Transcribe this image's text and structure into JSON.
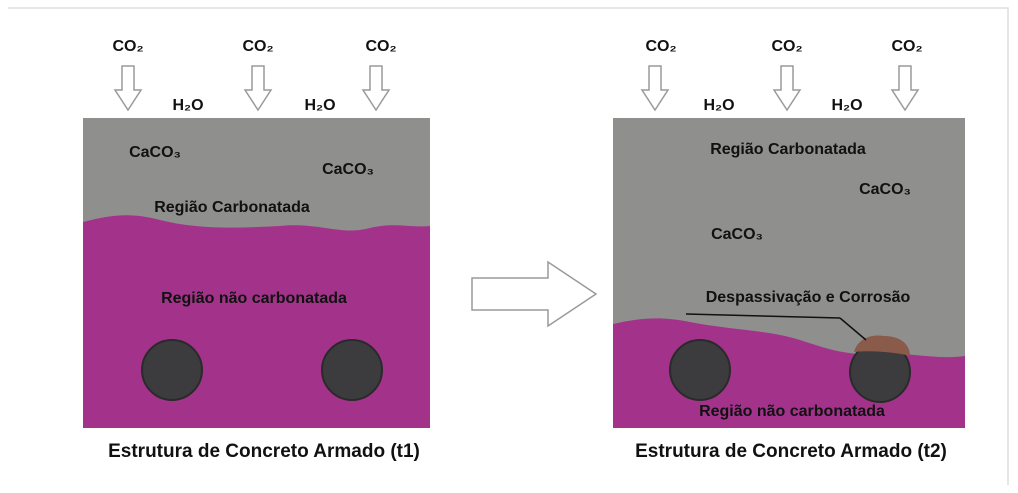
{
  "left": {
    "co2": [
      "CO₂",
      "CO₂",
      "CO₂"
    ],
    "h2o": [
      "H₂O",
      "H₂O"
    ],
    "caco3": [
      "CaCO₃",
      "CaCO₃"
    ],
    "carbonated": "Região Carbonatada",
    "non_carbonated": "Região não carbonatada",
    "caption": "Estrutura de Concreto Armado (t1)"
  },
  "right": {
    "co2": [
      "CO₂",
      "CO₂",
      "CO₂"
    ],
    "h2o": [
      "H₂O",
      "H₂O"
    ],
    "carbonated": "Região Carbonatada",
    "caco3": [
      "CaCO₃",
      "CaCO₃"
    ],
    "corrosion": "Despassivação e Corrosão",
    "non_carbonated": "Região não carbonatada",
    "caption": "Estrutura de Concreto Armado (t2)"
  }
}
